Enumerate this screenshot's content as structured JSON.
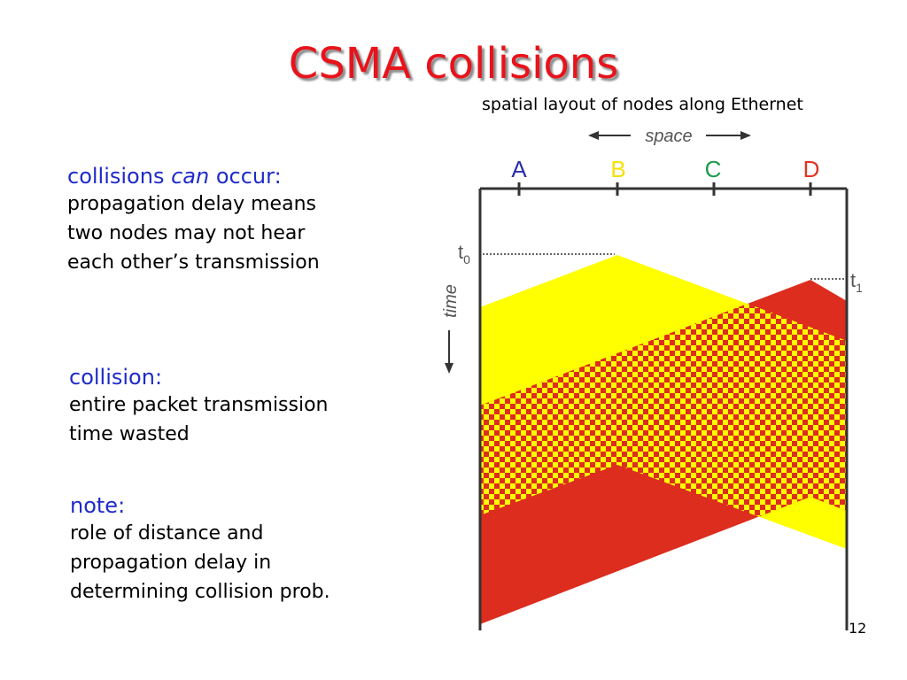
{
  "title": "CSMA collisions",
  "subtitle": "spatial layout of nodes along Ethernet",
  "blocks": [
    {
      "head_pre": "collisions ",
      "head_em": "can",
      "head_post": " occur:",
      "lines": [
        "propagation delay means",
        "two nodes may not hear",
        "each other’s transmission"
      ]
    },
    {
      "head": "collision:",
      "lines": [
        "entire packet transmission",
        "time wasted"
      ]
    },
    {
      "head": "note:",
      "lines": [
        "role of distance and",
        "propagation delay in",
        "determining collision prob."
      ]
    }
  ],
  "diagram": {
    "space_label": "space",
    "time_label": "time",
    "nodes": [
      {
        "label": "A",
        "color": "#2a2fa8"
      },
      {
        "label": "B",
        "color": "#f5e000"
      },
      {
        "label": "C",
        "color": "#1e9a4a"
      },
      {
        "label": "D",
        "color": "#e23323"
      }
    ],
    "t0_label": "t",
    "t0_sub": "0",
    "t1_label": "t",
    "t1_sub": "1",
    "colors": {
      "yellow": "#ffff00",
      "red": "#dc2d1e",
      "line": "#333333",
      "label_gray": "#555555"
    }
  },
  "page_number": "12"
}
